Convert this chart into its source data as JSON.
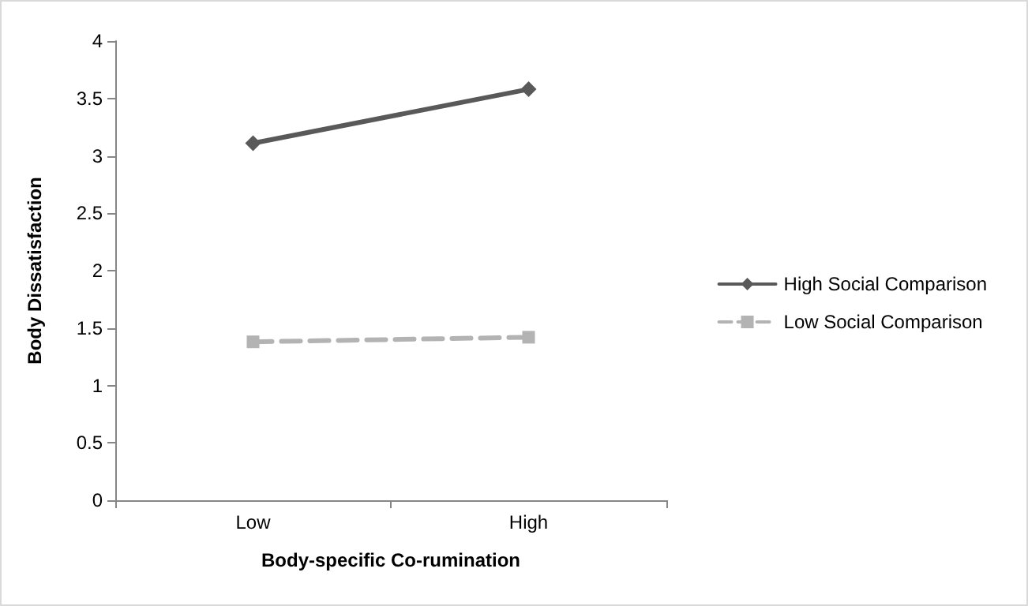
{
  "chart_data": {
    "type": "line",
    "xlabel": "Body-specific Co-rumination",
    "ylabel": "Body Dissatisfaction",
    "categories": [
      "Low",
      "High"
    ],
    "series": [
      {
        "name": "High Social Comparison",
        "color": "#595959",
        "values": [
          3.11,
          3.58
        ],
        "marker": "diamond",
        "line_style": "solid"
      },
      {
        "name": "Low Social Comparison",
        "color": "#b3b3b3",
        "values": [
          1.38,
          1.42
        ],
        "marker": "square",
        "line_style": "dashed"
      }
    ],
    "ylim": [
      0,
      4
    ],
    "yticks": [
      0,
      0.5,
      1,
      1.5,
      2,
      2.5,
      3,
      3.5,
      4
    ],
    "grid": false,
    "legend": "right"
  }
}
